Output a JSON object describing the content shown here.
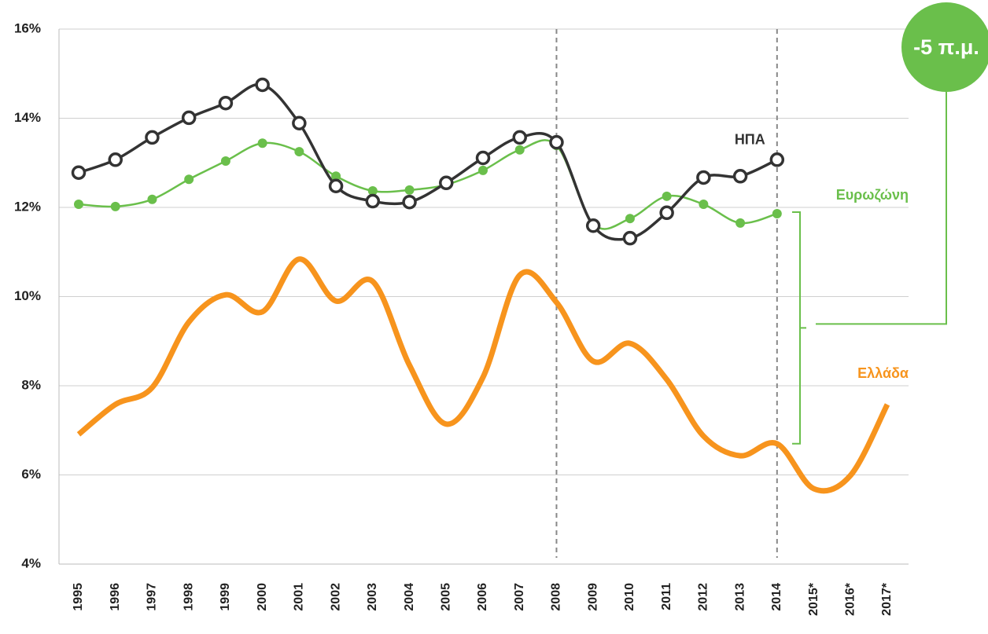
{
  "chart_data": {
    "type": "line",
    "categories": [
      "1995",
      "1996",
      "1997",
      "1998",
      "1999",
      "2000",
      "2001",
      "2002",
      "2003",
      "2004",
      "2005",
      "2006",
      "2007",
      "2008",
      "2009",
      "2010",
      "2011",
      "2012",
      "2013",
      "2014",
      "2015*",
      "2016*",
      "2017*"
    ],
    "series": [
      {
        "name": "ΗΠΑ",
        "color": "#333333",
        "marker": "open-circle",
        "values": [
          12.78,
          13.07,
          13.57,
          14.01,
          14.34,
          14.75,
          13.89,
          12.48,
          12.14,
          12.12,
          12.55,
          13.11,
          13.57,
          13.46,
          11.59,
          11.31,
          11.88,
          12.67,
          12.7,
          13.07,
          null,
          null,
          null
        ]
      },
      {
        "name": "Ευρωζώνη",
        "color": "#6abf4b",
        "marker": "dot",
        "values": [
          12.07,
          12.02,
          12.18,
          12.63,
          13.04,
          13.44,
          13.25,
          12.7,
          12.37,
          12.39,
          12.51,
          12.83,
          13.29,
          13.39,
          11.63,
          11.75,
          12.25,
          12.07,
          11.65,
          11.86,
          null,
          null,
          null
        ]
      },
      {
        "name": "Ελλάδα",
        "color": "#f7941d",
        "marker": "none",
        "values": [
          6.91,
          7.58,
          7.96,
          9.43,
          10.04,
          9.66,
          10.84,
          9.9,
          10.34,
          8.46,
          7.14,
          8.19,
          10.48,
          9.87,
          8.55,
          8.95,
          8.14,
          6.87,
          6.43,
          6.7,
          5.69,
          5.99,
          7.58
        ]
      }
    ],
    "ylim": [
      4,
      16
    ],
    "yticks": [
      {
        "value": 4,
        "label": "4%"
      },
      {
        "value": 6,
        "label": "6%"
      },
      {
        "value": 8,
        "label": "8%"
      },
      {
        "value": 10,
        "label": "10%"
      },
      {
        "value": 12,
        "label": "12%"
      },
      {
        "value": 14,
        "label": "14%"
      },
      {
        "value": 16,
        "label": "16%"
      }
    ],
    "grid": true,
    "reference_lines": [
      "2008",
      "2014"
    ],
    "annotation": "-5 π.μ.",
    "annotation_color": "#6abf4b"
  }
}
